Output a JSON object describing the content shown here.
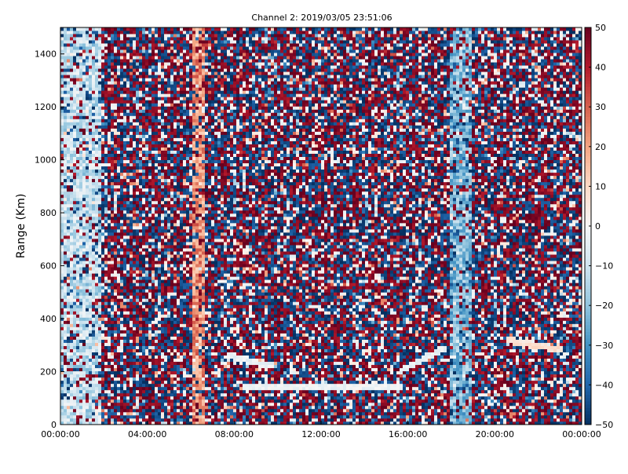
{
  "chart_data": {
    "type": "heatmap",
    "title": "Channel 2: 2019/03/05 23:51:06",
    "xlabel": "",
    "ylabel": "Range (Km)",
    "x_ticks": [
      "00:00:00",
      "04:00:00",
      "08:00:00",
      "12:00:00",
      "16:00:00",
      "20:00:00",
      "00:00:00"
    ],
    "x_range_hours": [
      0,
      24
    ],
    "y_ticks": [
      0,
      200,
      400,
      600,
      800,
      1000,
      1200,
      1400
    ],
    "ylim": [
      0,
      1500
    ],
    "colorbar": {
      "ticks": [
        50,
        40,
        30,
        20,
        10,
        0,
        -10,
        -20,
        -30,
        -40,
        -50
      ],
      "range": [
        -50,
        50
      ],
      "colormap": "RdBu_r",
      "low_color": "#053061",
      "mid_color": "#f7f7f7",
      "high_color": "#67001f"
    },
    "grid": false,
    "features": [
      {
        "kind": "vertical-band",
        "hours": [
          0,
          1.9
        ],
        "value": -12
      },
      {
        "kind": "vertical-band",
        "hours": [
          6.1,
          6.6
        ],
        "value": 22
      },
      {
        "kind": "vertical-band",
        "hours": [
          18.0,
          18.9
        ],
        "value": -22
      },
      {
        "kind": "horizontal-trace",
        "hours": [
          8.4,
          15.8
        ],
        "range_km": 140,
        "value": -2
      },
      {
        "kind": "sloped-trace",
        "hours": [
          7.7,
          9.8
        ],
        "range_km": [
          260,
          220
        ],
        "value": -3
      },
      {
        "kind": "sloped-trace",
        "hours": [
          15.6,
          17.8
        ],
        "range_km": [
          200,
          290
        ],
        "value": -4
      },
      {
        "kind": "sloped-trace",
        "hours": [
          20.6,
          23.2
        ],
        "range_km": [
          320,
          280
        ],
        "value": 8
      }
    ]
  }
}
